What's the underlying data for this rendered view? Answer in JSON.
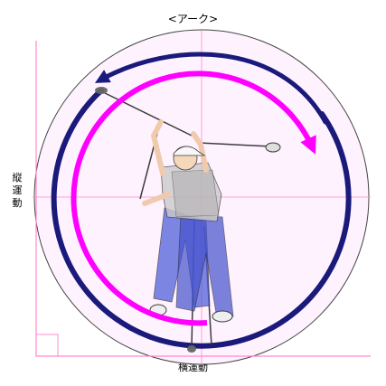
{
  "title": "<アーク>",
  "xlabel": "横運動",
  "ylabel": "縦運動",
  "colors": {
    "background_disc": "#fff2ff",
    "outer_arc": "#1a1a7a",
    "inner_arc": "#ff00ff",
    "axis": "#ff88cc",
    "golfer_shirt": "#c8c8c8",
    "golfer_pants": "#4a5ad8",
    "skin": "#f5d6b8"
  }
}
